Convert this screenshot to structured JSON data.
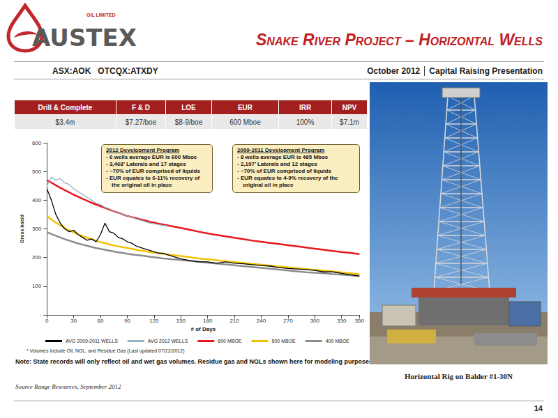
{
  "header": {
    "company": "AUSTEX",
    "company_sub": "OIL LIMITED",
    "title": "Snake River Project – Horizontal Wells",
    "tickers": "ASX:AOK   OTCQX:ATXDY",
    "date": "October 2012",
    "event": "Capital Raising Presentation"
  },
  "table": {
    "columns": [
      "Drill & Complete",
      "F & D",
      "LOE",
      "EUR",
      "IRR",
      "NPV"
    ],
    "rows": [
      [
        "$3.4m",
        "$7.27/boe",
        "$8-9/boe",
        "600 Mboe",
        "100%",
        "$7.1m"
      ]
    ]
  },
  "chart_data": {
    "type": "line",
    "x_label": "# of Days",
    "y_label": "Gross boe/d",
    "x": [
      0,
      5,
      10,
      15,
      20,
      25,
      30,
      35,
      40,
      45,
      50,
      55,
      60,
      65,
      70,
      75,
      80,
      85,
      90,
      95,
      100,
      105,
      110,
      115,
      120,
      125,
      130,
      135,
      140,
      145,
      150,
      160,
      170,
      180,
      190,
      200,
      210,
      220,
      230,
      240,
      250,
      260,
      270,
      280,
      290,
      300,
      310,
      320,
      330,
      340,
      350
    ],
    "series": [
      {
        "name": "AVG 2009-2011 WELLS",
        "color": "#000000",
        "values": [
          440,
          400,
          350,
          320,
          300,
          290,
          295,
          280,
          270,
          260,
          265,
          255,
          280,
          320,
          290,
          285,
          270,
          265,
          255,
          250,
          240,
          235,
          230,
          225,
          220,
          215,
          215,
          210,
          205,
          200,
          195,
          190,
          185,
          185,
          180,
          185,
          180,
          178,
          175,
          172,
          170,
          165,
          162,
          160,
          158,
          155,
          150,
          150,
          145,
          140,
          135
        ]
      },
      {
        "name": "AVG 2012 WELLS",
        "color": "#93b3c2",
        "values": [
          450,
          480,
          470,
          475,
          460,
          455,
          440,
          430,
          420,
          410,
          400,
          390,
          385,
          375,
          370,
          360,
          355,
          350,
          345,
          340,
          335,
          330,
          325,
          320,
          318,
          315,
          312,
          310,
          null,
          null,
          null,
          null,
          null,
          null,
          null,
          null,
          null,
          null,
          null,
          null,
          null,
          null,
          null,
          null,
          null,
          null,
          null,
          null,
          null,
          null,
          null
        ]
      },
      {
        "name": "600 MBOE",
        "color": "#e8171c",
        "values": [
          470,
          461,
          452,
          443,
          435,
          427,
          419,
          412,
          405,
          398,
          391,
          385,
          379,
          373,
          367,
          361,
          356,
          350,
          345,
          341,
          337,
          333,
          329,
          325,
          322,
          318,
          315,
          312,
          309,
          306,
          303,
          297,
          290,
          284,
          279,
          274,
          269,
          264,
          259,
          255,
          251,
          247,
          243,
          239,
          235,
          231,
          227,
          223,
          219,
          216,
          212
        ]
      },
      {
        "name": "500 MBOE",
        "color": "#f2c200",
        "values": [
          345,
          333,
          322,
          312,
          303,
          295,
          288,
          281,
          275,
          269,
          264,
          259,
          254,
          250,
          246,
          242,
          239,
          236,
          233,
          230,
          227,
          224,
          222,
          219,
          217,
          215,
          213,
          211,
          209,
          207,
          205,
          201,
          197,
          194,
          191,
          187,
          184,
          181,
          178,
          175,
          172,
          169,
          166,
          163,
          160,
          157,
          154,
          151,
          148,
          145,
          142
        ]
      },
      {
        "name": "400 MBOE",
        "color": "#8c8c8c",
        "values": [
          289,
          282,
          276,
          270,
          264,
          259,
          254,
          249,
          245,
          241,
          237,
          233,
          230,
          227,
          224,
          221,
          218,
          216,
          213,
          211,
          209,
          207,
          205,
          203,
          201,
          199,
          197,
          196,
          194,
          193,
          191,
          188,
          185,
          182,
          179,
          176,
          173,
          170,
          167,
          164,
          161,
          158,
          155,
          152,
          149,
          147,
          145,
          142,
          140,
          138,
          136
        ]
      }
    ],
    "xlim": [
      0,
      350
    ],
    "xticks": [
      0,
      30,
      60,
      90,
      120,
      150,
      180,
      210,
      240,
      270,
      300,
      330,
      350
    ],
    "ylim": [
      0,
      600
    ],
    "yticks": [
      {
        "value": 0,
        "label": "-"
      },
      100,
      200,
      300,
      400,
      500,
      600
    ],
    "grid": false,
    "legend": "bottom",
    "annotations": [
      {
        "title": "2012 Development Program",
        "lines": [
          "- 6 wells average EUR is 600 Mboe",
          "- 3,468’ Laterals and 17 stages",
          "- ~70% of EUR comprised of liquids",
          "- EUR equates to 6-11% recovery of the original oil in place"
        ]
      },
      {
        "title": "2009-2011 Development Program",
        "lines": [
          "- 8 wells average EUR is 485 Mboe",
          "- 2,197’ Laterals and 12 stages",
          "- ~70% of EUR comprised of liquids",
          "- EUR equates to 4-9% recovery of the original oil in place"
        ]
      }
    ],
    "footnote": "* Volumes include Oil, NGL, and Residue Gas (Last updated 07/22/2012)",
    "note": "Note: State records will only reflect oil and wet gas volumes. Residue gas and NGLs shown here for modeling purposes."
  },
  "source": "Source Range Resources, September 2012",
  "photo_caption": "Horizontal Rig on Balder #1-30N",
  "page_number": 14
}
